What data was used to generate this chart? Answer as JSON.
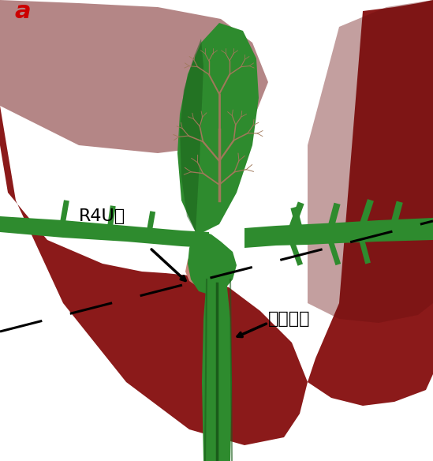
{
  "bg_color": "#ffffff",
  "liver_color": "#8B1A1A",
  "liver_shadow": "#6B0F0F",
  "gallbladder_green": "#2E8B2E",
  "gallbladder_dark_green": "#1a5c1a",
  "vessel_brown": "#A0785A",
  "label_a": "a",
  "label_a_color": "#CC0000",
  "label_r4u": "R4U线",
  "label_cbt": "胆总管线",
  "flesh_color": "#C8857A"
}
